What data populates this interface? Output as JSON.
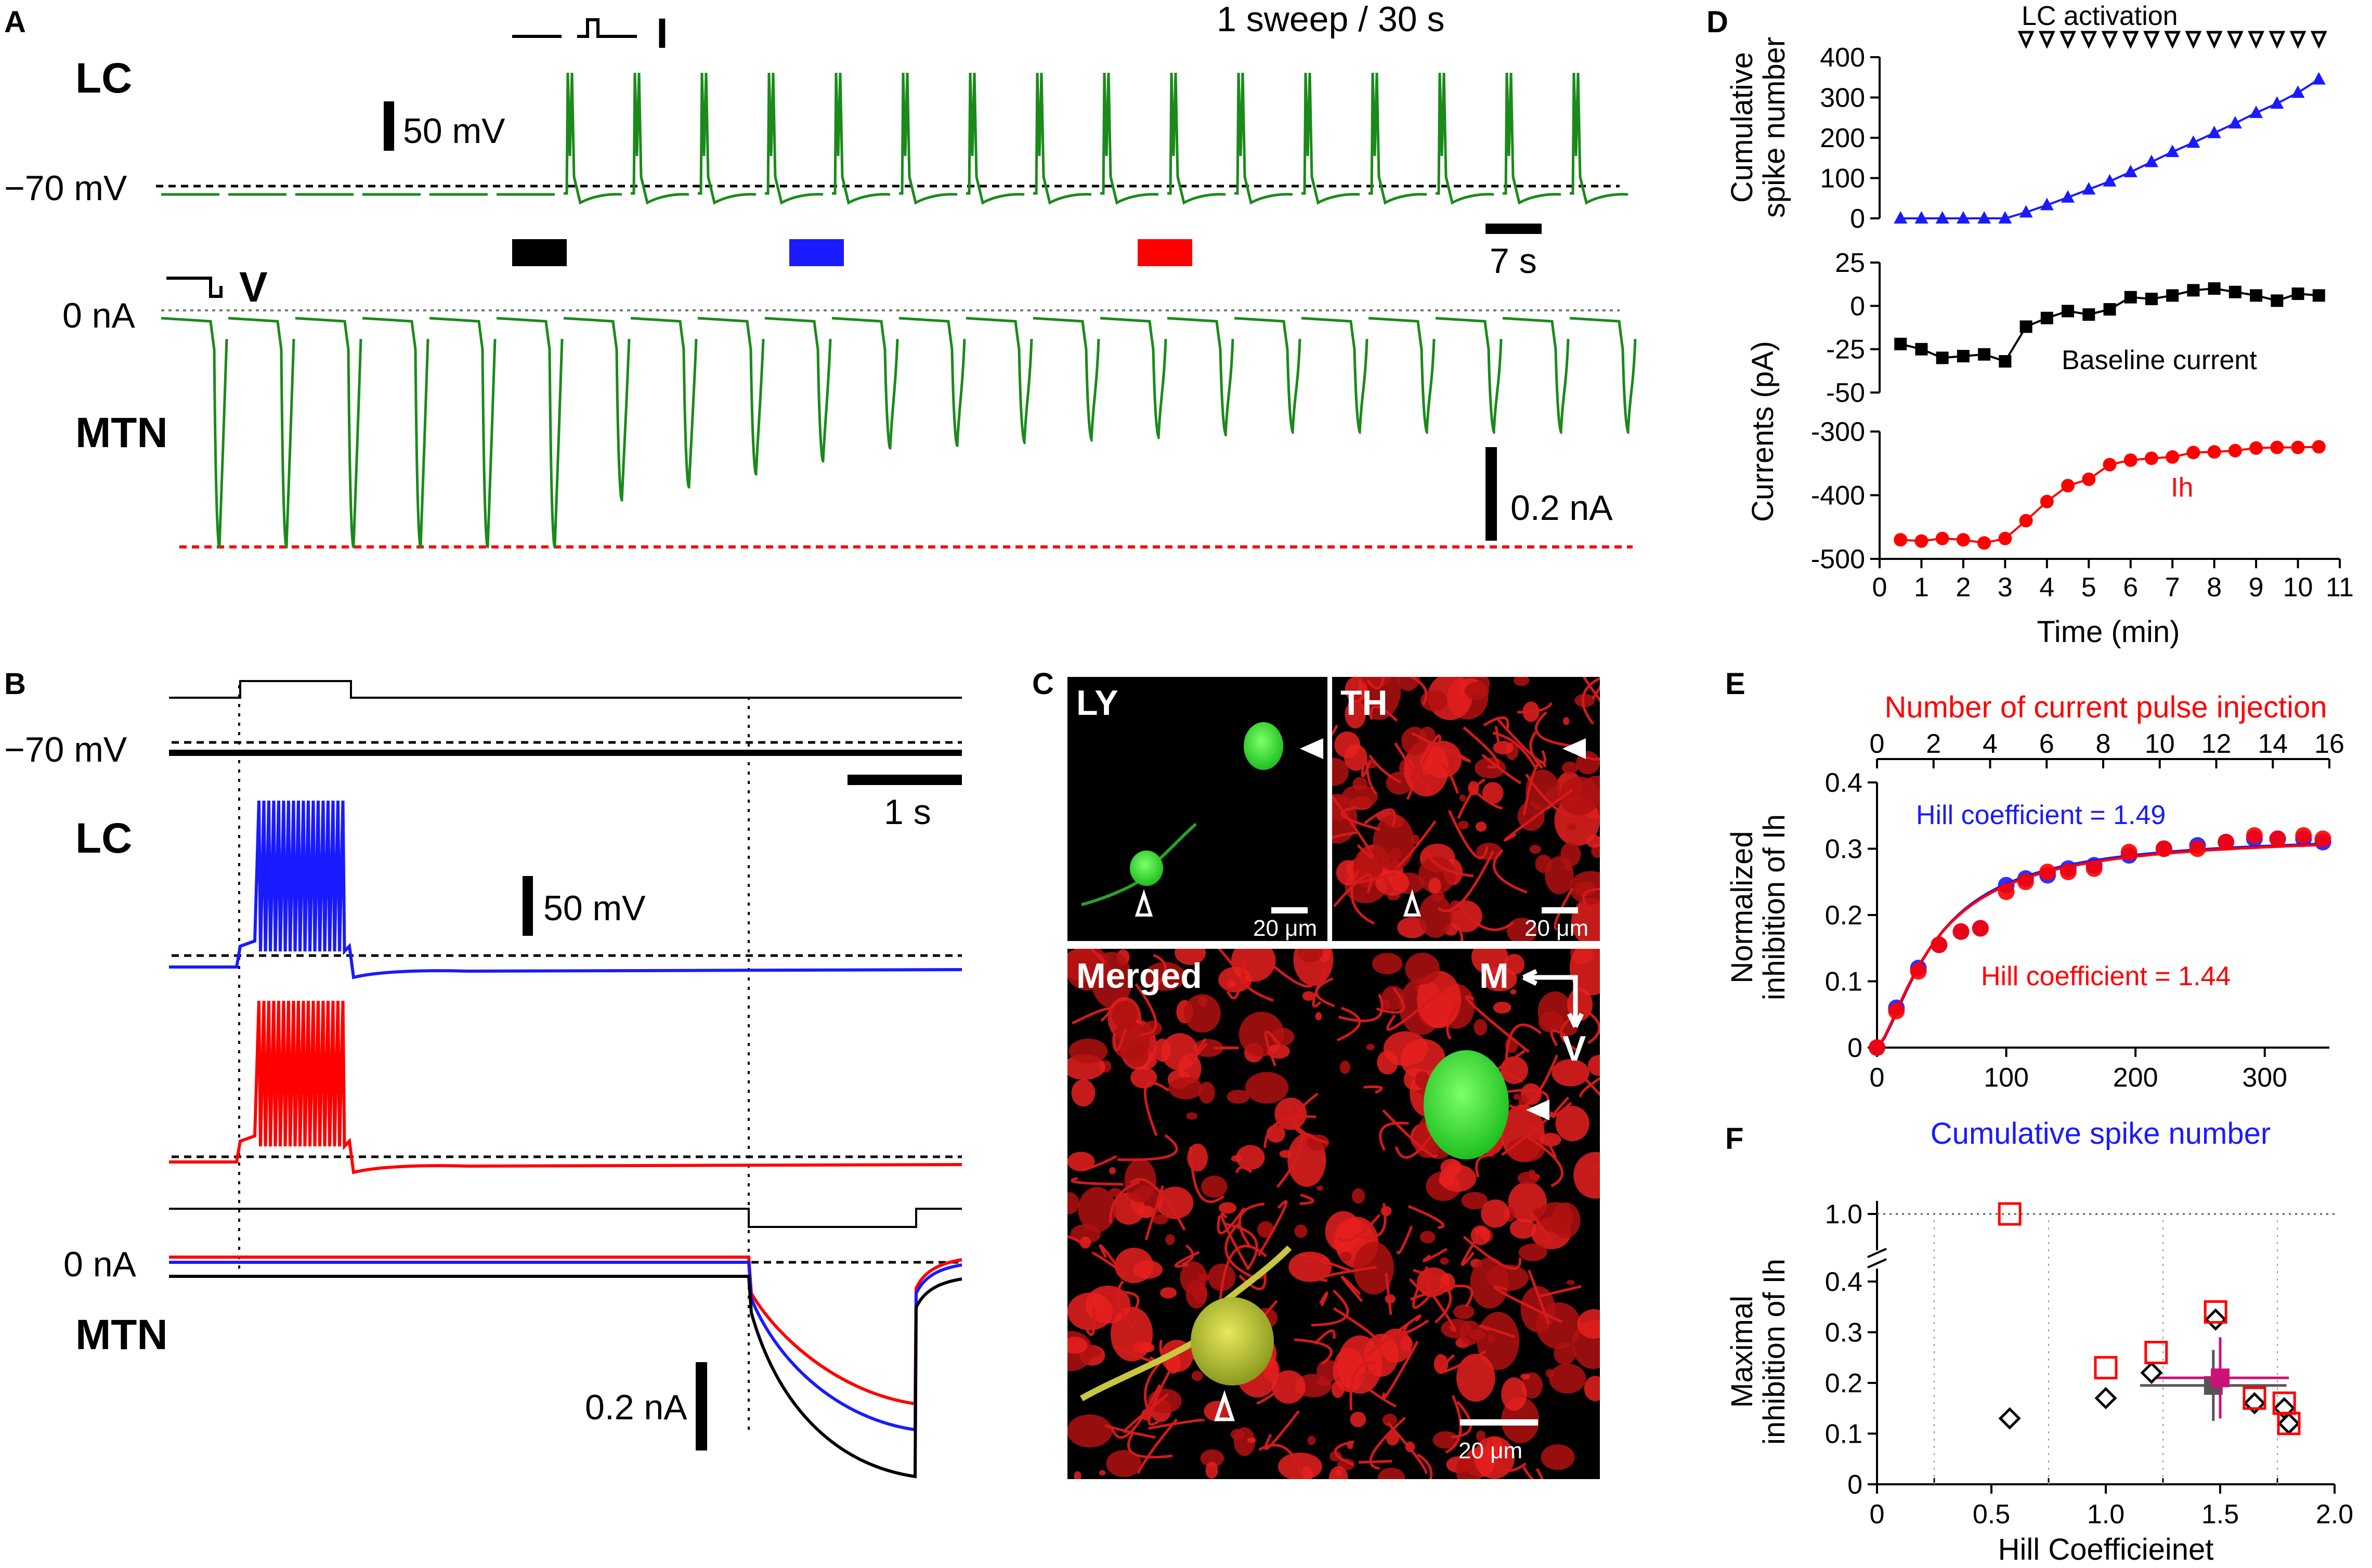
{
  "panel_A": {
    "letter": "A",
    "lc_label": "LC",
    "mtn_label": "MTN",
    "sweep_note": "1 sweep / 30 s",
    "lc_baseline": "−70 mV",
    "mtn_baseline": "0 nA",
    "stim_mark_i": "I",
    "stim_mark_v": "V",
    "scale_voltage": "50 mV",
    "scale_current": "0.2 nA",
    "scale_time": "7 s",
    "trace_color": "#1a8a1a",
    "marker_colors": [
      "#000000",
      "#1a1aff",
      "#ff0000"
    ]
  },
  "panel_B": {
    "letter": "B",
    "lc_label": "LC",
    "mtn_label": "MTN",
    "lc_baseline": "−70 mV",
    "mtn_baseline": "0 nA",
    "scale_time": "1 s",
    "scale_voltage": "50 mV",
    "scale_current": "0.2 nA"
  },
  "panel_C": {
    "letter": "C",
    "ly_label": "LY",
    "th_label": "TH",
    "merged_label": "Merged",
    "axis_m": "M",
    "axis_v": "V",
    "scale_ly": "20 μm",
    "scale_th": "20 μm",
    "scale_merged": "20 μm"
  },
  "panel_D": {
    "letter": "D",
    "activation_label": "LC activation",
    "ylabel_top_1": "Cumulative",
    "ylabel_top_2": "spike number",
    "ylabel_currents": "Currents (pA)",
    "xlabel": "Time (min)",
    "baseline_label": "Baseline current",
    "ih_label": "Ih"
  },
  "panel_E": {
    "letter": "E",
    "top_axis_label": "Number of current pulse injection",
    "bottom_axis_label": "Cumulative spike number",
    "ylabel_1": "Normalized",
    "ylabel_2": "inhibition of Ih",
    "hill_blue": "Hill coefficient = 1.49",
    "hill_red": "Hill coefficient = 1.44"
  },
  "panel_F": {
    "letter": "F",
    "ylabel_1": "Maximal",
    "ylabel_2": "inhibition of Ih",
    "xlabel": "Hill Coefficieinet"
  },
  "chart_data": [
    {
      "id": "D_top",
      "type": "scatter",
      "x": [
        0.5,
        1.0,
        1.5,
        2.0,
        2.5,
        3.0,
        3.5,
        4.0,
        4.5,
        5.0,
        5.5,
        6.0,
        6.5,
        7.0,
        7.5,
        8.0,
        8.5,
        9.0,
        9.5,
        10.0,
        10.5
      ],
      "series": [
        {
          "color": "#1a1aff",
          "values": [
            0,
            0,
            0,
            0,
            0,
            0,
            15,
            33,
            52,
            72,
            92,
            115,
            140,
            165,
            188,
            212,
            236,
            262,
            285,
            312,
            345
          ]
        }
      ],
      "xlim": [
        0,
        11
      ],
      "ylim": [
        0,
        400
      ],
      "yticks": [
        0,
        100,
        200,
        300,
        400
      ],
      "activation_x": [
        3.5,
        4.0,
        4.5,
        5.0,
        5.5,
        6.0,
        6.5,
        7.0,
        7.5,
        8.0,
        8.5,
        9.0,
        9.5,
        10.0,
        10.5
      ]
    },
    {
      "id": "D_mid",
      "type": "scatter",
      "x": [
        0.5,
        1.0,
        1.5,
        2.0,
        2.5,
        3.0,
        3.5,
        4.0,
        4.5,
        5.0,
        5.5,
        6.0,
        6.5,
        7.0,
        7.5,
        8.0,
        8.5,
        9.0,
        9.5,
        10.0,
        10.5
      ],
      "series": [
        {
          "color": "#000000",
          "values": [
            -22,
            -25,
            -30,
            -29,
            -28,
            -32,
            -12,
            -7,
            -3,
            -5,
            -2,
            5,
            4,
            6,
            9,
            10,
            8,
            6,
            3,
            7,
            6
          ]
        }
      ],
      "xlim": [
        0,
        11
      ],
      "ylim": [
        -50,
        25
      ],
      "yticks": [
        -50,
        -25,
        0,
        25
      ]
    },
    {
      "id": "D_bot",
      "type": "scatter",
      "x": [
        0.5,
        1.0,
        1.5,
        2.0,
        2.5,
        3.0,
        3.5,
        4.0,
        4.5,
        5.0,
        5.5,
        6.0,
        6.5,
        7.0,
        7.5,
        8.0,
        8.5,
        9.0,
        9.5,
        10.0,
        10.5
      ],
      "series": [
        {
          "color": "#ff0000",
          "values": [
            -470,
            -472,
            -468,
            -470,
            -475,
            -468,
            -440,
            -410,
            -385,
            -375,
            -352,
            -345,
            -342,
            -340,
            -333,
            -332,
            -330,
            -326,
            -325,
            -325,
            -324
          ]
        }
      ],
      "xlim": [
        0,
        11
      ],
      "ylim": [
        -500,
        -300
      ],
      "yticks": [
        -500,
        -400,
        -300
      ],
      "xticks": [
        0,
        1,
        2,
        3,
        4,
        5,
        6,
        7,
        8,
        9,
        10,
        11
      ]
    },
    {
      "id": "E",
      "type": "scatter",
      "xlim": [
        0,
        350
      ],
      "xticks": [
        0,
        100,
        200,
        300
      ],
      "top_xlim": [
        0,
        16
      ],
      "top_xticks": [
        0,
        2,
        4,
        6,
        8,
        10,
        12,
        14,
        16
      ],
      "ylim": [
        0,
        0.4
      ],
      "yticks": [
        0,
        0.1,
        0.2,
        0.3,
        0.4
      ],
      "series": [
        {
          "color": "#1a1aff",
          "x": [
            0,
            15,
            32,
            48,
            65,
            80,
            100,
            115,
            132,
            148,
            168,
            195,
            222,
            248,
            270,
            292,
            310,
            330,
            345
          ],
          "values": [
            0,
            0.06,
            0.12,
            0.155,
            0.175,
            0.18,
            0.245,
            0.255,
            0.26,
            0.27,
            0.275,
            0.29,
            0.3,
            0.305,
            0.31,
            0.315,
            0.315,
            0.315,
            0.31
          ]
        },
        {
          "color": "#ff0000",
          "x": [
            0,
            15,
            32,
            48,
            65,
            80,
            100,
            115,
            132,
            148,
            168,
            195,
            222,
            248,
            270,
            292,
            310,
            330,
            345
          ],
          "values": [
            0,
            0.055,
            0.115,
            0.155,
            0.175,
            0.18,
            0.235,
            0.25,
            0.265,
            0.265,
            0.27,
            0.295,
            0.3,
            0.3,
            0.31,
            0.32,
            0.315,
            0.32,
            0.315
          ]
        }
      ]
    },
    {
      "id": "F",
      "type": "scatter",
      "xlim": [
        0,
        2.0
      ],
      "xticks": [
        0,
        0.5,
        1.0,
        1.5,
        2.0
      ],
      "yticks": [
        0,
        0.1,
        0.2,
        0.3,
        0.4,
        1.0
      ],
      "series": [
        {
          "color": "#000000",
          "marker": "diamond",
          "x": [
            0.58,
            1.0,
            1.2,
            1.48,
            1.65,
            1.78,
            1.8
          ],
          "values": [
            0.13,
            0.17,
            0.22,
            0.325,
            0.16,
            0.15,
            0.12
          ]
        },
        {
          "color": "#ff0000",
          "marker": "square",
          "x": [
            0.58,
            1.0,
            1.22,
            1.48,
            1.65,
            1.78,
            1.8
          ],
          "values": [
            1.0,
            0.23,
            0.26,
            0.34,
            0.17,
            0.16,
            0.12
          ]
        }
      ],
      "means": [
        {
          "color": "#555555",
          "x": 1.47,
          "y": 0.195,
          "xerr": 0.32,
          "yerr": 0.07
        },
        {
          "color": "#cc1177",
          "x": 1.5,
          "y": 0.21,
          "xerr": 0.3,
          "yerr": 0.08
        }
      ]
    }
  ]
}
